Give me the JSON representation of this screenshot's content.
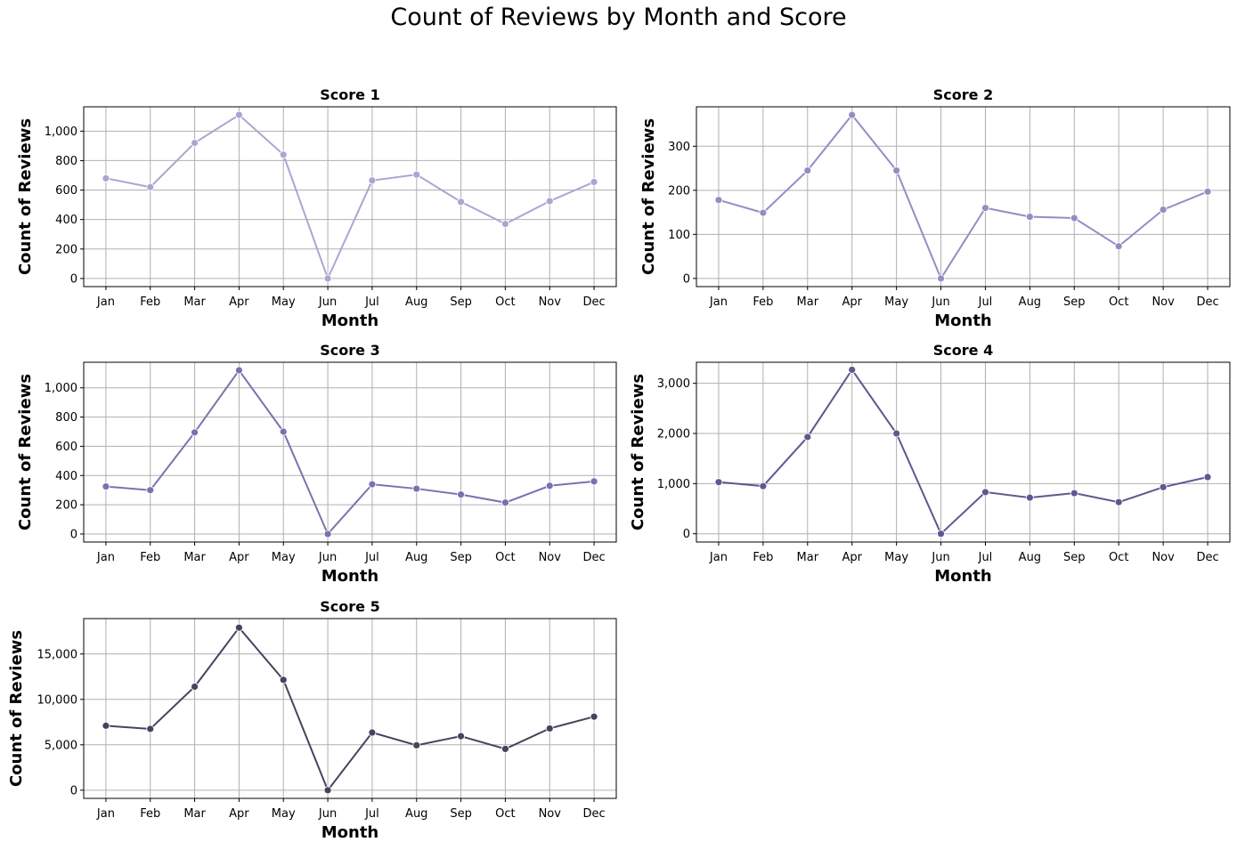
{
  "figure": {
    "title": "Count of Reviews by Month and Score"
  },
  "chart_data": [
    {
      "type": "line",
      "title": "Score 1",
      "xlabel": "Month",
      "ylabel": "Count of Reviews",
      "categories": [
        "Jan",
        "Feb",
        "Mar",
        "Apr",
        "May",
        "Jun",
        "Jul",
        "Aug",
        "Sep",
        "Oct",
        "Nov",
        "Dec"
      ],
      "values": [
        680,
        620,
        920,
        1110,
        840,
        0,
        665,
        705,
        520,
        370,
        525,
        655
      ],
      "ylim": [
        -55,
        1165
      ],
      "yticks": [
        0,
        200,
        400,
        600,
        800,
        1000
      ],
      "yticklabels": [
        "0",
        "200",
        "400",
        "600",
        "800",
        "1,000"
      ],
      "grid": true,
      "color": "#aaa6d3"
    },
    {
      "type": "line",
      "title": "Score 2",
      "xlabel": "Month",
      "ylabel": "Count of Reviews",
      "categories": [
        "Jan",
        "Feb",
        "Mar",
        "Apr",
        "May",
        "Jun",
        "Jul",
        "Aug",
        "Sep",
        "Oct",
        "Nov",
        "Dec"
      ],
      "values": [
        178,
        149,
        245,
        371,
        245,
        0,
        160,
        140,
        137,
        73,
        156,
        197
      ],
      "ylim": [
        -18.5,
        389.5
      ],
      "yticks": [
        0,
        100,
        200,
        300
      ],
      "yticklabels": [
        "0",
        "100",
        "200",
        "300"
      ],
      "grid": true,
      "color": "#928ec4"
    },
    {
      "type": "line",
      "title": "Score 3",
      "xlabel": "Month",
      "ylabel": "Count of Reviews",
      "categories": [
        "Jan",
        "Feb",
        "Mar",
        "Apr",
        "May",
        "Jun",
        "Jul",
        "Aug",
        "Sep",
        "Oct",
        "Nov",
        "Dec"
      ],
      "values": [
        325,
        300,
        695,
        1120,
        700,
        0,
        340,
        310,
        270,
        215,
        330,
        360
      ],
      "ylim": [
        -55,
        1175
      ],
      "yticks": [
        0,
        200,
        400,
        600,
        800,
        1000
      ],
      "yticklabels": [
        "0",
        "200",
        "400",
        "600",
        "800",
        "1,000"
      ],
      "grid": true,
      "color": "#7872b0"
    },
    {
      "type": "line",
      "title": "Score 4",
      "xlabel": "Month",
      "ylabel": "Count of Reviews",
      "categories": [
        "Jan",
        "Feb",
        "Mar",
        "Apr",
        "May",
        "Jun",
        "Jul",
        "Aug",
        "Sep",
        "Oct",
        "Nov",
        "Dec"
      ],
      "values": [
        1030,
        950,
        1930,
        3270,
        2000,
        0,
        830,
        720,
        810,
        630,
        930,
        1130
      ],
      "ylim": [
        -165,
        3420
      ],
      "yticks": [
        0,
        1000,
        2000,
        3000
      ],
      "yticklabels": [
        "0",
        "1,000",
        "2,000",
        "3,000"
      ],
      "grid": true,
      "color": "#5d5890"
    },
    {
      "type": "line",
      "title": "Score 5",
      "xlabel": "Month",
      "ylabel": "Count of Reviews",
      "categories": [
        "Jan",
        "Feb",
        "Mar",
        "Apr",
        "May",
        "Jun",
        "Jul",
        "Aug",
        "Sep",
        "Oct",
        "Nov",
        "Dec"
      ],
      "values": [
        7100,
        6750,
        11400,
        17900,
        12150,
        0,
        6350,
        4950,
        5950,
        4550,
        6800,
        8100
      ],
      "ylim": [
        -900,
        18900
      ],
      "yticks": [
        0,
        5000,
        10000,
        15000
      ],
      "yticklabels": [
        "0",
        "5,000",
        "10,000",
        "15,000"
      ],
      "grid": true,
      "color": "#46435e"
    }
  ]
}
